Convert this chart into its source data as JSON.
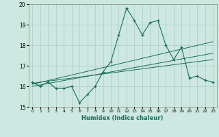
{
  "title": "",
  "xlabel": "Humidex (Indice chaleur)",
  "xlim": [
    -0.5,
    23.5
  ],
  "ylim": [
    15,
    20
  ],
  "yticks": [
    15,
    16,
    17,
    18,
    19,
    20
  ],
  "xticks": [
    0,
    1,
    2,
    3,
    4,
    5,
    6,
    7,
    8,
    9,
    10,
    11,
    12,
    13,
    14,
    15,
    16,
    17,
    18,
    19,
    20,
    21,
    22,
    23
  ],
  "bg_color": "#cce8e0",
  "line_color": "#1a6b5a",
  "grid_color": "#aaccc4",
  "main_y": [
    16.2,
    16.0,
    16.2,
    15.9,
    15.9,
    16.0,
    15.2,
    15.6,
    16.0,
    16.7,
    17.2,
    18.5,
    19.8,
    19.2,
    18.5,
    19.1,
    19.2,
    18.0,
    17.3,
    17.9,
    16.4,
    16.5,
    16.3,
    16.2
  ],
  "trend1_y": [
    16.15,
    16.2,
    16.25,
    16.3,
    16.35,
    16.4,
    16.45,
    16.5,
    16.55,
    16.6,
    16.65,
    16.7,
    16.75,
    16.8,
    16.85,
    16.9,
    16.95,
    17.0,
    17.05,
    17.1,
    17.15,
    17.2,
    17.25,
    17.3
  ],
  "trend2_y": [
    16.0,
    16.07,
    16.14,
    16.21,
    16.28,
    16.35,
    16.42,
    16.49,
    16.56,
    16.63,
    16.7,
    16.77,
    16.84,
    16.91,
    16.98,
    17.05,
    17.12,
    17.19,
    17.26,
    17.33,
    17.4,
    17.47,
    17.54,
    17.61
  ],
  "trend3_y": [
    16.1,
    16.19,
    16.28,
    16.37,
    16.46,
    16.55,
    16.64,
    16.73,
    16.82,
    16.91,
    17.0,
    17.09,
    17.18,
    17.27,
    17.36,
    17.45,
    17.54,
    17.63,
    17.72,
    17.81,
    17.9,
    17.99,
    18.08,
    18.17
  ]
}
